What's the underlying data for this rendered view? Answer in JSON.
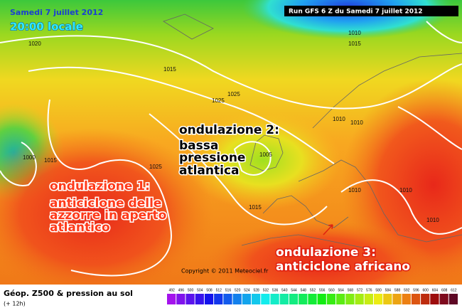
{
  "header": {
    "date": "Samedi 7 juillet 2012",
    "time": "20:00 locale",
    "run": "Run GFS 6 Z du Samedi 7 juillet 2012"
  },
  "annotations": [
    {
      "lines": [
        "ondulazione 1:",
        "anticiclone delle",
        "azzorre in aperto",
        "atlantico"
      ]
    },
    {
      "lines": [
        "ondulazione 2:",
        "bassa",
        "pressione",
        "atlantica"
      ]
    },
    {
      "lines": [
        "ondulazione 3:",
        "anticiclone africano"
      ]
    }
  ],
  "isobar_labels": [
    "1020",
    "1010",
    "1015",
    "1015",
    "1025",
    "1025",
    "1010",
    "1010",
    "1000",
    "1015",
    "1005",
    "1025",
    "1010",
    "1010",
    "1015",
    "1010"
  ],
  "copyright": "Copyright © 2011 Meteociel.fr",
  "legend": {
    "title": "Géop. Z500 & pression au sol",
    "subtitle": "(+ 12h)",
    "scale": [
      492,
      496,
      500,
      504,
      508,
      512,
      516,
      520,
      524,
      528,
      532,
      536,
      540,
      544,
      548,
      552,
      556,
      560,
      564,
      568,
      572,
      576,
      580,
      584,
      588,
      592,
      596,
      600,
      604,
      608,
      612
    ]
  }
}
